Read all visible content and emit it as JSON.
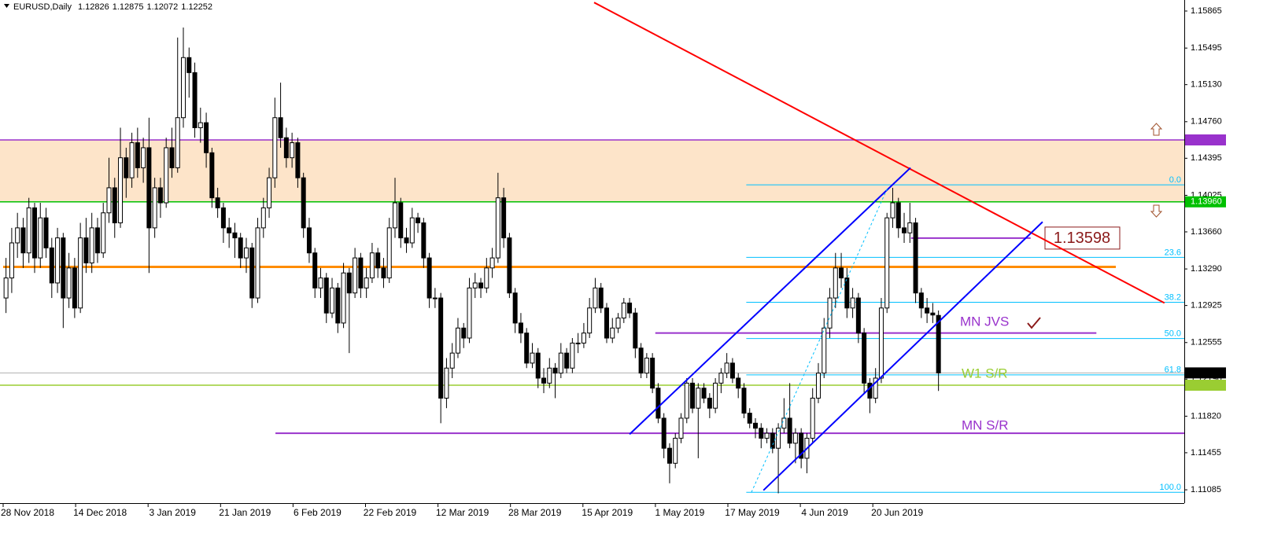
{
  "chart_data": {
    "type": "candlestick",
    "symbol": "EURUSD,Daily",
    "categories": [
      "28 Nov 2018",
      "14 Dec 2018",
      "3 Jan 2019",
      "21 Jan 2019",
      "6 Feb 2019",
      "22 Feb 2019",
      "12 Mar 2019",
      "28 Mar 2019",
      "15 Apr 2019",
      "1 May 2019",
      "17 May 2019",
      "4 Jun 2019",
      "20 Jun 2019"
    ],
    "ylim": [
      1.10952,
      1.15975
    ],
    "yticks": [
      1.15865,
      1.15495,
      {
        "value": 1.1513,
        "label": "1.15130"
      },
      {
        "value": 1.1476,
        "label": "1.14760"
      },
      1.14395,
      1.14025,
      {
        "value": 1.1366,
        "label": "1.13660"
      },
      {
        "value": 1.1329,
        "label": "1.13290"
      },
      1.12925,
      1.12555,
      {
        "value": 1.1219,
        "label": "1.12190"
      },
      {
        "value": 1.1182,
        "label": "1.11820"
      },
      1.11455,
      1.11085
    ],
    "zone_color": "#fde4c9",
    "levels": [
      {
        "value": 1.14578,
        "color": "#9932cc"
      },
      {
        "value": 1.1396,
        "label": "1.13960",
        "color": "#00c000"
      },
      {
        "value": 1.12252,
        "color": "#000000"
      },
      {
        "value": 1.12129,
        "color": "#9acd32"
      }
    ],
    "hlines": [
      {
        "value": 1.1331,
        "from": -0.5,
        "to": 194,
        "color": "#ff8c00"
      },
      {
        "value": 1.1265,
        "from": 113.5,
        "to": 190.6,
        "color": "#9932cc"
      },
      {
        "value": 1.1165,
        "from": 47.1,
        "color": "#9932cc"
      },
      {
        "value": 1.13598,
        "from": 158.2,
        "to": 179.1,
        "color": "#9932cc"
      }
    ],
    "annotations": [
      {
        "text": "MN JVS",
        "color": "#9932cc"
      },
      {
        "text": "W1 S/R",
        "color": "#9acd32"
      },
      {
        "text": "MN S/R",
        "color": "#9932cc"
      }
    ],
    "trendlines": [
      {
        "from": [
          102.8,
          1.1595
        ],
        "to": [
          202.5,
          1.1295
        ],
        "color": "#ff0000"
      },
      {
        "from": [
          109,
          1.1164
        ],
        "to": [
          158.1,
          1.143
        ],
        "color": "#0000ff"
      },
      {
        "from": [
          132.4,
          1.1108
        ],
        "to": [
          181.2,
          1.1376
        ],
        "color": "#0000ff"
      },
      {
        "from": [
          130.3,
          1.1106
        ],
        "to": [
          154.1,
          1.141
        ],
        "color": "#00bfff",
        "dashed": true
      }
    ],
    "fib": {
      "from": 129.4,
      "high": 1.1413,
      "low": 1.1106,
      "color": "#00bfff",
      "levels": [
        {
          "value": 0,
          "label": "0.0"
        },
        23.6,
        38.2,
        {
          "value": 50,
          "label": "50.0"
        },
        61.8,
        {
          "value": 100,
          "label": "100.0"
        }
      ]
    },
    "candles": [
      [
        1.13,
        1.134,
        1.1285,
        1.132
      ],
      [
        1.132,
        1.137,
        1.1305,
        1.1355
      ],
      [
        1.1355,
        1.1385,
        1.134,
        1.137
      ],
      [
        1.137,
        1.138,
        1.133,
        1.1345
      ],
      [
        1.1345,
        1.14,
        1.1335,
        1.139
      ],
      [
        1.139,
        1.1395,
        1.1325,
        1.134
      ],
      [
        1.134,
        1.1395,
        1.133,
        1.138
      ],
      [
        1.138,
        1.139,
        1.134,
        1.135
      ],
      [
        1.135,
        1.136,
        1.13,
        1.1315
      ],
      [
        1.1315,
        1.137,
        1.1305,
        1.136
      ],
      [
        1.136,
        1.1365,
        1.127,
        1.13
      ],
      [
        1.13,
        1.1345,
        1.129,
        1.133
      ],
      [
        1.133,
        1.134,
        1.128,
        1.129
      ],
      [
        1.129,
        1.1375,
        1.1285,
        1.136
      ],
      [
        1.136,
        1.138,
        1.1325,
        1.1335
      ],
      [
        1.1335,
        1.1385,
        1.1325,
        1.137
      ],
      [
        1.137,
        1.138,
        1.1335,
        1.1345
      ],
      [
        1.1345,
        1.1395,
        1.134,
        1.1385
      ],
      [
        1.1385,
        1.144,
        1.1375,
        1.141
      ],
      [
        1.141,
        1.142,
        1.136,
        1.1375
      ],
      [
        1.1375,
        1.147,
        1.137,
        1.144
      ],
      [
        1.144,
        1.145,
        1.14,
        1.142
      ],
      [
        1.142,
        1.1465,
        1.141,
        1.1455
      ],
      [
        1.1455,
        1.147,
        1.142,
        1.143
      ],
      [
        1.143,
        1.146,
        1.1415,
        1.145
      ],
      [
        1.145,
        1.148,
        1.1325,
        1.137
      ],
      [
        1.137,
        1.142,
        1.136,
        1.141
      ],
      [
        1.141,
        1.142,
        1.138,
        1.1395
      ],
      [
        1.1395,
        1.146,
        1.139,
        1.145
      ],
      [
        1.145,
        1.147,
        1.142,
        1.143
      ],
      [
        1.143,
        1.156,
        1.1425,
        1.148
      ],
      [
        1.148,
        1.157,
        1.147,
        1.154
      ],
      [
        1.154,
        1.155,
        1.15,
        1.1525
      ],
      [
        1.1525,
        1.1535,
        1.146,
        1.147
      ],
      [
        1.147,
        1.149,
        1.1455,
        1.1475
      ],
      [
        1.1475,
        1.1485,
        1.143,
        1.1445
      ],
      [
        1.1445,
        1.145,
        1.139,
        1.14
      ],
      [
        1.14,
        1.141,
        1.138,
        1.139
      ],
      [
        1.139,
        1.1395,
        1.1355,
        1.137
      ],
      [
        1.137,
        1.138,
        1.135,
        1.1365
      ],
      [
        1.1365,
        1.1375,
        1.134,
        1.136
      ],
      [
        1.136,
        1.1365,
        1.133,
        1.134
      ],
      [
        1.134,
        1.136,
        1.1325,
        1.135
      ],
      [
        1.135,
        1.1355,
        1.129,
        1.13
      ],
      [
        1.13,
        1.138,
        1.1295,
        1.137
      ],
      [
        1.137,
        1.14,
        1.136,
        1.139
      ],
      [
        1.139,
        1.143,
        1.138,
        1.142
      ],
      [
        1.142,
        1.15,
        1.141,
        1.148
      ],
      [
        1.148,
        1.1515,
        1.145,
        1.146
      ],
      [
        1.146,
        1.147,
        1.143,
        1.144
      ],
      [
        1.144,
        1.1465,
        1.143,
        1.1455
      ],
      [
        1.1455,
        1.146,
        1.141,
        1.142
      ],
      [
        1.142,
        1.1425,
        1.136,
        1.137
      ],
      [
        1.137,
        1.138,
        1.1335,
        1.1345
      ],
      [
        1.1345,
        1.135,
        1.13,
        1.131
      ],
      [
        1.131,
        1.133,
        1.13,
        1.132
      ],
      [
        1.132,
        1.1325,
        1.1275,
        1.1285
      ],
      [
        1.1285,
        1.132,
        1.128,
        1.131
      ],
      [
        1.131,
        1.1315,
        1.1265,
        1.1275
      ],
      [
        1.1275,
        1.1335,
        1.127,
        1.1325
      ],
      [
        1.1325,
        1.133,
        1.1245,
        1.1305
      ],
      [
        1.1305,
        1.135,
        1.13,
        1.134
      ],
      [
        1.134,
        1.1345,
        1.13,
        1.131
      ],
      [
        1.131,
        1.133,
        1.13,
        1.132
      ],
      [
        1.132,
        1.1355,
        1.1315,
        1.1345
      ],
      [
        1.1345,
        1.135,
        1.132,
        1.133
      ],
      [
        1.133,
        1.134,
        1.131,
        1.132
      ],
      [
        1.132,
        1.138,
        1.1315,
        1.137
      ],
      [
        1.137,
        1.142,
        1.136,
        1.1395
      ],
      [
        1.1395,
        1.14,
        1.135,
        1.136
      ],
      [
        1.136,
        1.137,
        1.1345,
        1.1355
      ],
      [
        1.1355,
        1.139,
        1.135,
        1.138
      ],
      [
        1.138,
        1.1385,
        1.1365,
        1.1375
      ],
      [
        1.1375,
        1.138,
        1.133,
        1.134
      ],
      [
        1.134,
        1.1345,
        1.129,
        1.13
      ],
      [
        1.13,
        1.131,
        1.129,
        1.13
      ],
      [
        1.13,
        1.1305,
        1.1175,
        1.12
      ],
      [
        1.12,
        1.124,
        1.119,
        1.123
      ],
      [
        1.123,
        1.1255,
        1.122,
        1.1245
      ],
      [
        1.1245,
        1.128,
        1.124,
        1.127
      ],
      [
        1.127,
        1.1275,
        1.125,
        1.126
      ],
      [
        1.126,
        1.132,
        1.1255,
        1.131
      ],
      [
        1.131,
        1.1325,
        1.13,
        1.1315
      ],
      [
        1.1315,
        1.132,
        1.13,
        1.131
      ],
      [
        1.131,
        1.134,
        1.1305,
        1.133
      ],
      [
        1.133,
        1.135,
        1.132,
        1.134
      ],
      [
        1.134,
        1.1425,
        1.1335,
        1.14
      ],
      [
        1.14,
        1.141,
        1.135,
        1.136
      ],
      [
        1.136,
        1.1365,
        1.13,
        1.1305
      ],
      [
        1.1305,
        1.131,
        1.1265,
        1.1275
      ],
      [
        1.1275,
        1.1285,
        1.1255,
        1.1265
      ],
      [
        1.1265,
        1.127,
        1.123,
        1.1235
      ],
      [
        1.1235,
        1.1255,
        1.123,
        1.1245
      ],
      [
        1.1245,
        1.125,
        1.121,
        1.122
      ],
      [
        1.122,
        1.123,
        1.1205,
        1.1215
      ],
      [
        1.1215,
        1.124,
        1.121,
        1.123
      ],
      [
        1.123,
        1.1235,
        1.12,
        1.1225
      ],
      [
        1.1225,
        1.1255,
        1.122,
        1.1245
      ],
      [
        1.1245,
        1.125,
        1.1225,
        1.123
      ],
      [
        1.123,
        1.126,
        1.1225,
        1.1255
      ],
      [
        1.1255,
        1.1265,
        1.1245,
        1.1255
      ],
      [
        1.1255,
        1.1275,
        1.125,
        1.1265
      ],
      [
        1.1265,
        1.13,
        1.126,
        1.129
      ],
      [
        1.129,
        1.132,
        1.1285,
        1.131
      ],
      [
        1.131,
        1.1315,
        1.1285,
        1.129
      ],
      [
        1.129,
        1.1295,
        1.1255,
        1.126
      ],
      [
        1.126,
        1.128,
        1.1255,
        1.127
      ],
      [
        1.127,
        1.1285,
        1.1265,
        1.128
      ],
      [
        1.128,
        1.13,
        1.1275,
        1.1295
      ],
      [
        1.1295,
        1.13,
        1.128,
        1.1285
      ],
      [
        1.1285,
        1.129,
        1.124,
        1.125
      ],
      [
        1.125,
        1.1255,
        1.122,
        1.1225
      ],
      [
        1.1225,
        1.1245,
        1.122,
        1.124
      ],
      [
        1.124,
        1.1245,
        1.1205,
        1.121
      ],
      [
        1.121,
        1.1215,
        1.1175,
        1.118
      ],
      [
        1.118,
        1.1185,
        1.114,
        1.115
      ],
      [
        1.115,
        1.1155,
        1.1115,
        1.1135
      ],
      [
        1.1135,
        1.1165,
        1.113,
        1.116
      ],
      [
        1.116,
        1.1185,
        1.1155,
        1.118
      ],
      [
        1.118,
        1.122,
        1.1175,
        1.1215
      ],
      [
        1.1215,
        1.122,
        1.1185,
        1.119
      ],
      [
        1.119,
        1.1215,
        1.114,
        1.121
      ],
      [
        1.121,
        1.1215,
        1.1195,
        1.12
      ],
      [
        1.12,
        1.1205,
        1.118,
        1.119
      ],
      [
        1.119,
        1.122,
        1.1185,
        1.1215
      ],
      [
        1.1215,
        1.123,
        1.1205,
        1.1225
      ],
      [
        1.1225,
        1.1245,
        1.122,
        1.1235
      ],
      [
        1.1235,
        1.124,
        1.1215,
        1.122
      ],
      [
        1.122,
        1.1225,
        1.12,
        1.121
      ],
      [
        1.121,
        1.1215,
        1.118,
        1.1185
      ],
      [
        1.1185,
        1.119,
        1.117,
        1.1175
      ],
      [
        1.1175,
        1.118,
        1.116,
        1.117
      ],
      [
        1.117,
        1.1175,
        1.115,
        1.116
      ],
      [
        1.116,
        1.117,
        1.1155,
        1.1165
      ],
      [
        1.1165,
        1.117,
        1.1145,
        1.115
      ],
      [
        1.115,
        1.1175,
        1.1105,
        1.117
      ],
      [
        1.117,
        1.12,
        1.1165,
        1.118
      ],
      [
        1.118,
        1.1215,
        1.115,
        1.1155
      ],
      [
        1.1155,
        1.117,
        1.1135,
        1.1165
      ],
      [
        1.1165,
        1.117,
        1.113,
        1.114
      ],
      [
        1.114,
        1.1165,
        1.1125,
        1.116
      ],
      [
        1.116,
        1.121,
        1.1155,
        1.12
      ],
      [
        1.12,
        1.1235,
        1.1195,
        1.1225
      ],
      [
        1.1225,
        1.128,
        1.122,
        1.127
      ],
      [
        1.127,
        1.131,
        1.126,
        1.13
      ],
      [
        1.13,
        1.1345,
        1.129,
        1.133
      ],
      [
        1.133,
        1.1345,
        1.131,
        1.132
      ],
      [
        1.132,
        1.133,
        1.128,
        1.129
      ],
      [
        1.129,
        1.131,
        1.128,
        1.13
      ],
      [
        1.13,
        1.1305,
        1.1255,
        1.1265
      ],
      [
        1.1265,
        1.127,
        1.1205,
        1.1215
      ],
      [
        1.1215,
        1.122,
        1.1185,
        1.12
      ],
      [
        1.12,
        1.123,
        1.1195,
        1.122
      ],
      [
        1.122,
        1.13,
        1.1215,
        1.129
      ],
      [
        1.129,
        1.1385,
        1.1285,
        1.138
      ],
      [
        1.138,
        1.141,
        1.137,
        1.1395
      ],
      [
        1.1395,
        1.14,
        1.136,
        1.137
      ],
      [
        1.137,
        1.1385,
        1.1355,
        1.1365
      ],
      [
        1.1365,
        1.1395,
        1.1355,
        1.1375
      ],
      [
        1.1375,
        1.138,
        1.1295,
        1.1305
      ],
      [
        1.1305,
        1.131,
        1.128,
        1.129
      ],
      [
        1.129,
        1.13,
        1.1275,
        1.1285
      ],
      [
        1.1285,
        1.1295,
        1.1275,
        1.1283
      ],
      [
        1.12826,
        1.12875,
        1.12072,
        1.12252
      ]
    ]
  }
}
